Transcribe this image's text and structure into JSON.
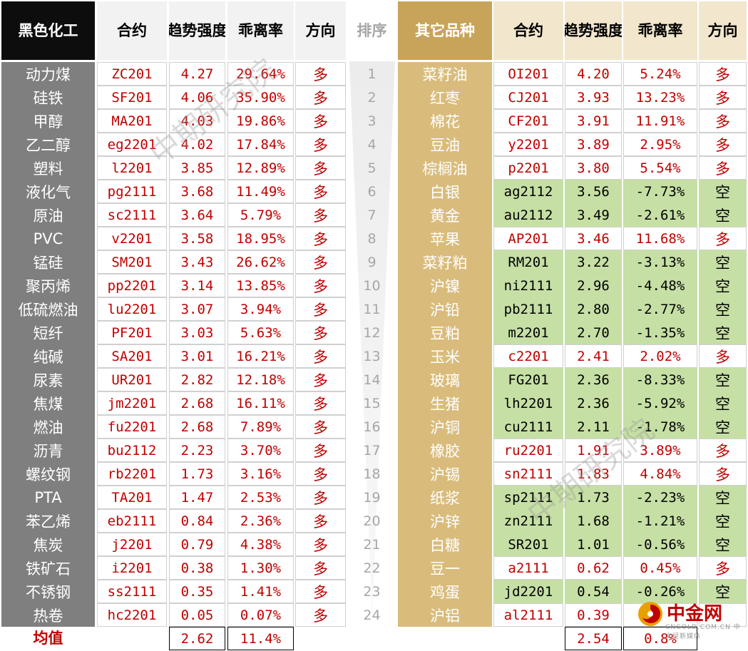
{
  "colors": {
    "header_black": "#0d0d0d",
    "header_gray": "#f2f2f2",
    "left_name_bg": "#7f7f7f",
    "gold_header": "#c8a45a",
    "gold_name_bg": "#d9bc7c",
    "light_gold_header": "#f2e6cc",
    "red_text": "#c00000",
    "green_bg": "#c6dfa5"
  },
  "left": {
    "headers": {
      "category": "黑色化工",
      "contract": "合约",
      "trend": "趋势强度",
      "deviation": "乖离率",
      "direction": "方向"
    },
    "rows": [
      {
        "name": "动力煤",
        "contract": "ZC201",
        "trend": "4.27",
        "deviation": "29.64%",
        "direction": "多"
      },
      {
        "name": "硅铁",
        "contract": "SF201",
        "trend": "4.06",
        "deviation": "35.90%",
        "direction": "多"
      },
      {
        "name": "甲醇",
        "contract": "MA201",
        "trend": "4.03",
        "deviation": "19.86%",
        "direction": "多"
      },
      {
        "name": "乙二醇",
        "contract": "eg2201",
        "trend": "4.02",
        "deviation": "17.84%",
        "direction": "多"
      },
      {
        "name": "塑料",
        "contract": "l2201",
        "trend": "3.85",
        "deviation": "12.89%",
        "direction": "多"
      },
      {
        "name": "液化气",
        "contract": "pg2111",
        "trend": "3.68",
        "deviation": "11.49%",
        "direction": "多"
      },
      {
        "name": "原油",
        "contract": "sc2111",
        "trend": "3.64",
        "deviation": "5.79%",
        "direction": "多"
      },
      {
        "name": "PVC",
        "contract": "v2201",
        "trend": "3.58",
        "deviation": "18.95%",
        "direction": "多"
      },
      {
        "name": "锰硅",
        "contract": "SM201",
        "trend": "3.43",
        "deviation": "26.62%",
        "direction": "多"
      },
      {
        "name": "聚丙烯",
        "contract": "pp2201",
        "trend": "3.14",
        "deviation": "13.85%",
        "direction": "多"
      },
      {
        "name": "低硫燃油",
        "contract": "lu2201",
        "trend": "3.07",
        "deviation": "3.94%",
        "direction": "多"
      },
      {
        "name": "短纤",
        "contract": "PF201",
        "trend": "3.03",
        "deviation": "5.63%",
        "direction": "多"
      },
      {
        "name": "纯碱",
        "contract": "SA201",
        "trend": "3.01",
        "deviation": "16.21%",
        "direction": "多"
      },
      {
        "name": "尿素",
        "contract": "UR201",
        "trend": "2.82",
        "deviation": "12.18%",
        "direction": "多"
      },
      {
        "name": "焦煤",
        "contract": "jm2201",
        "trend": "2.68",
        "deviation": "16.11%",
        "direction": "多"
      },
      {
        "name": "燃油",
        "contract": "fu2201",
        "trend": "2.68",
        "deviation": "7.89%",
        "direction": "多"
      },
      {
        "name": "沥青",
        "contract": "bu2112",
        "trend": "2.23",
        "deviation": "3.70%",
        "direction": "多"
      },
      {
        "name": "螺纹钢",
        "contract": "rb2201",
        "trend": "1.73",
        "deviation": "3.16%",
        "direction": "多"
      },
      {
        "name": "PTA",
        "contract": "TA201",
        "trend": "1.47",
        "deviation": "2.53%",
        "direction": "多"
      },
      {
        "name": "苯乙烯",
        "contract": "eb2111",
        "trend": "0.84",
        "deviation": "2.36%",
        "direction": "多"
      },
      {
        "name": "焦炭",
        "contract": "j2201",
        "trend": "0.79",
        "deviation": "4.38%",
        "direction": "多"
      },
      {
        "name": "铁矿石",
        "contract": "i2201",
        "trend": "0.38",
        "deviation": "1.30%",
        "direction": "多"
      },
      {
        "name": "不锈钢",
        "contract": "ss2111",
        "trend": "0.35",
        "deviation": "1.41%",
        "direction": "多"
      },
      {
        "name": "热卷",
        "contract": "hc2201",
        "trend": "0.05",
        "deviation": "0.07%",
        "direction": "多"
      }
    ],
    "average": {
      "label": "均值",
      "trend": "2.62",
      "deviation": "11.4%"
    }
  },
  "rank": {
    "header": "排序",
    "values": [
      "1",
      "2",
      "3",
      "4",
      "5",
      "6",
      "7",
      "8",
      "9",
      "10",
      "11",
      "12",
      "13",
      "14",
      "15",
      "16",
      "17",
      "18",
      "19",
      "20",
      "21",
      "22",
      "23",
      "24"
    ]
  },
  "right": {
    "headers": {
      "category": "其它品种",
      "contract": "合约",
      "trend": "趋势强度",
      "deviation": "乖离率",
      "direction": "方向"
    },
    "rows": [
      {
        "name": "菜籽油",
        "contract": "OI201",
        "trend": "4.20",
        "deviation": "5.24%",
        "direction": "多",
        "short": false
      },
      {
        "name": "红枣",
        "contract": "CJ201",
        "trend": "3.93",
        "deviation": "13.23%",
        "direction": "多",
        "short": false
      },
      {
        "name": "棉花",
        "contract": "CF201",
        "trend": "3.91",
        "deviation": "11.91%",
        "direction": "多",
        "short": false
      },
      {
        "name": "豆油",
        "contract": "y2201",
        "trend": "3.89",
        "deviation": "2.95%",
        "direction": "多",
        "short": false
      },
      {
        "name": "棕榈油",
        "contract": "p2201",
        "trend": "3.80",
        "deviation": "5.54%",
        "direction": "多",
        "short": false
      },
      {
        "name": "白银",
        "contract": "ag2112",
        "trend": "3.56",
        "deviation": "-7.73%",
        "direction": "空",
        "short": true
      },
      {
        "name": "黄金",
        "contract": "au2112",
        "trend": "3.49",
        "deviation": "-2.61%",
        "direction": "空",
        "short": true
      },
      {
        "name": "苹果",
        "contract": "AP201",
        "trend": "3.46",
        "deviation": "11.68%",
        "direction": "多",
        "short": false
      },
      {
        "name": "菜籽粕",
        "contract": "RM201",
        "trend": "3.22",
        "deviation": "-3.13%",
        "direction": "空",
        "short": true
      },
      {
        "name": "沪镍",
        "contract": "ni2111",
        "trend": "2.96",
        "deviation": "-4.48%",
        "direction": "空",
        "short": true
      },
      {
        "name": "沪铅",
        "contract": "pb2111",
        "trend": "2.80",
        "deviation": "-2.77%",
        "direction": "空",
        "short": true
      },
      {
        "name": "豆粕",
        "contract": "m2201",
        "trend": "2.70",
        "deviation": "-1.35%",
        "direction": "空",
        "short": true
      },
      {
        "name": "玉米",
        "contract": "c2201",
        "trend": "2.41",
        "deviation": "2.02%",
        "direction": "多",
        "short": false
      },
      {
        "name": "玻璃",
        "contract": "FG201",
        "trend": "2.36",
        "deviation": "-8.33%",
        "direction": "空",
        "short": true
      },
      {
        "name": "生猪",
        "contract": "lh2201",
        "trend": "2.36",
        "deviation": "-5.92%",
        "direction": "空",
        "short": true
      },
      {
        "name": "沪铜",
        "contract": "cu2111",
        "trend": "2.11",
        "deviation": "-1.78%",
        "direction": "空",
        "short": true
      },
      {
        "name": "橡胶",
        "contract": "ru2201",
        "trend": "1.91",
        "deviation": "3.89%",
        "direction": "多",
        "short": false
      },
      {
        "name": "沪锡",
        "contract": "sn2111",
        "trend": "1.83",
        "deviation": "4.84%",
        "direction": "多",
        "short": false
      },
      {
        "name": "纸浆",
        "contract": "sp2111",
        "trend": "1.73",
        "deviation": "-2.23%",
        "direction": "空",
        "short": true
      },
      {
        "name": "沪锌",
        "contract": "zn2111",
        "trend": "1.68",
        "deviation": "-1.21%",
        "direction": "空",
        "short": true
      },
      {
        "name": "白糖",
        "contract": "SR201",
        "trend": "1.01",
        "deviation": "-0.56%",
        "direction": "空",
        "short": true
      },
      {
        "name": "豆一",
        "contract": "a2111",
        "trend": "0.62",
        "deviation": "0.45%",
        "direction": "多",
        "short": false
      },
      {
        "name": "鸡蛋",
        "contract": "jd2201",
        "trend": "0.54",
        "deviation": "-0.26%",
        "direction": "空",
        "short": true
      },
      {
        "name": "沪铝",
        "contract": "al2111",
        "trend": "0.39",
        "deviation": "",
        "direction": "",
        "short": false
      }
    ],
    "average": {
      "trend": "2.54",
      "deviation": "0.8%"
    }
  },
  "watermark": "中期研究院",
  "logo": {
    "name": "中金网",
    "sub": "CNGOLD.COM.CN 中文经新媒体"
  }
}
